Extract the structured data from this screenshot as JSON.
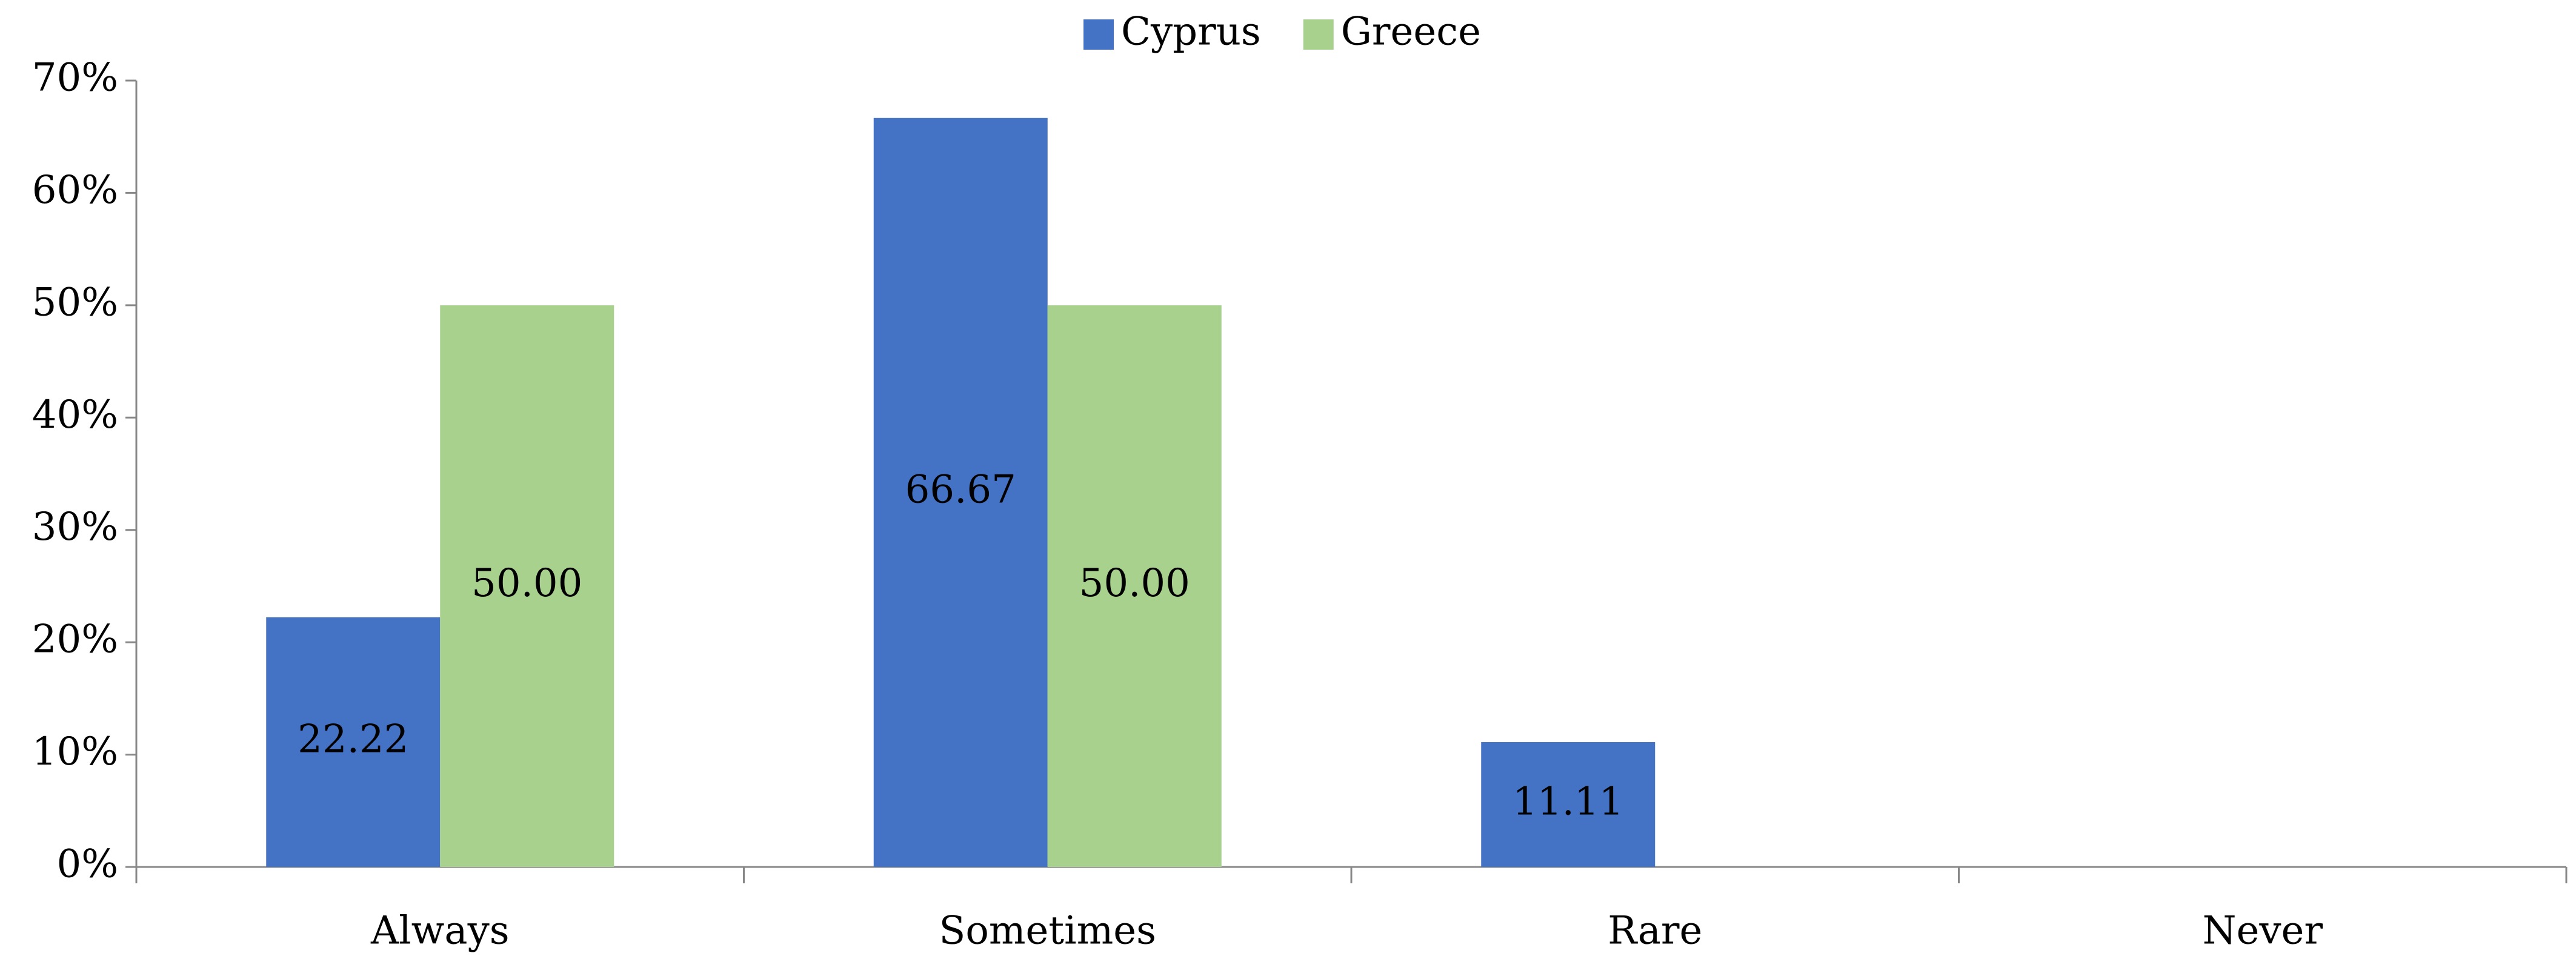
{
  "chart_data": {
    "type": "bar",
    "categories": [
      "Always",
      "Sometimes",
      "Rare",
      "Never"
    ],
    "series": [
      {
        "name": "Cyprus",
        "color": "#4472c4",
        "values": [
          22.22,
          66.67,
          11.11,
          0
        ],
        "value_labels": [
          "22.22",
          "66.67",
          "11.11",
          null
        ]
      },
      {
        "name": "Greece",
        "color": "#a9d18e",
        "values": [
          50,
          50,
          0,
          0
        ],
        "value_labels": [
          "50.00",
          "50.00",
          null,
          null
        ]
      }
    ],
    "ylim": [
      0,
      70
    ],
    "yticks": [
      {
        "value": 0,
        "label": "0%"
      },
      {
        "value": 10,
        "label": "10%"
      },
      {
        "value": 20,
        "label": "20%"
      },
      {
        "value": 30,
        "label": "30%"
      },
      {
        "value": 40,
        "label": "40%"
      },
      {
        "value": 50,
        "label": "50%"
      },
      {
        "value": 60,
        "label": "60%"
      },
      {
        "value": 70,
        "label": "70%"
      }
    ],
    "legend": "top"
  }
}
